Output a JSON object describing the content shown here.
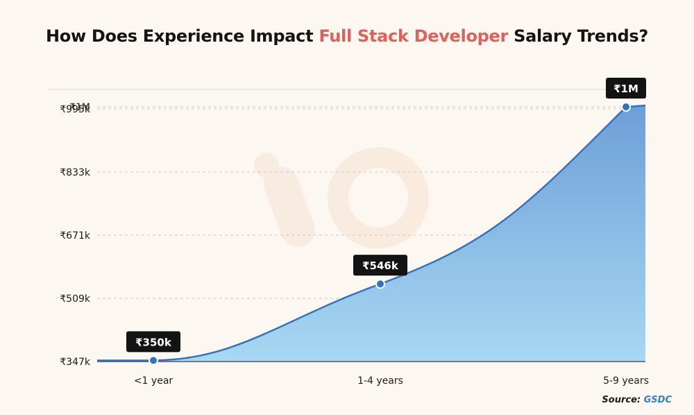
{
  "title": {
    "prefix": "How Does Experience Impact",
    "highlight": "Full Stack Developer",
    "suffix": "Salary Trends?",
    "highlight_color": "#e0605a"
  },
  "source": {
    "label": "Source:",
    "name": "GSDC"
  },
  "colors": {
    "line": "#2f74c0",
    "area_top": "#6d9fd7",
    "area_bottom": "#a8d8f2",
    "label_bg": "#131313",
    "grid": "#c9c9c9",
    "axis": "#555555"
  },
  "chart_data": {
    "type": "area",
    "title": "How Does Experience Impact Full Stack Developer Salary Trends?",
    "categories": [
      "<1 year",
      "1-4 years",
      "5-9 years"
    ],
    "series": [
      {
        "values": [
          350000,
          546000,
          1000000
        ]
      }
    ],
    "data_labels": [
      "₹350k",
      "₹546k",
      "₹1M"
    ],
    "y_ticks": [
      {
        "value": 347000,
        "label": "₹347k"
      },
      {
        "value": 509000,
        "label": "₹509k"
      },
      {
        "value": 671000,
        "label": "₹671k"
      },
      {
        "value": 833000,
        "label": "₹833k"
      },
      {
        "value": 995000,
        "label": "₹995k"
      },
      {
        "value": 1000000,
        "label": "₹1M"
      }
    ],
    "xlabel": "",
    "ylabel": "",
    "ylim": [
      347000,
      1000000
    ],
    "grid": true,
    "legend": "none"
  }
}
